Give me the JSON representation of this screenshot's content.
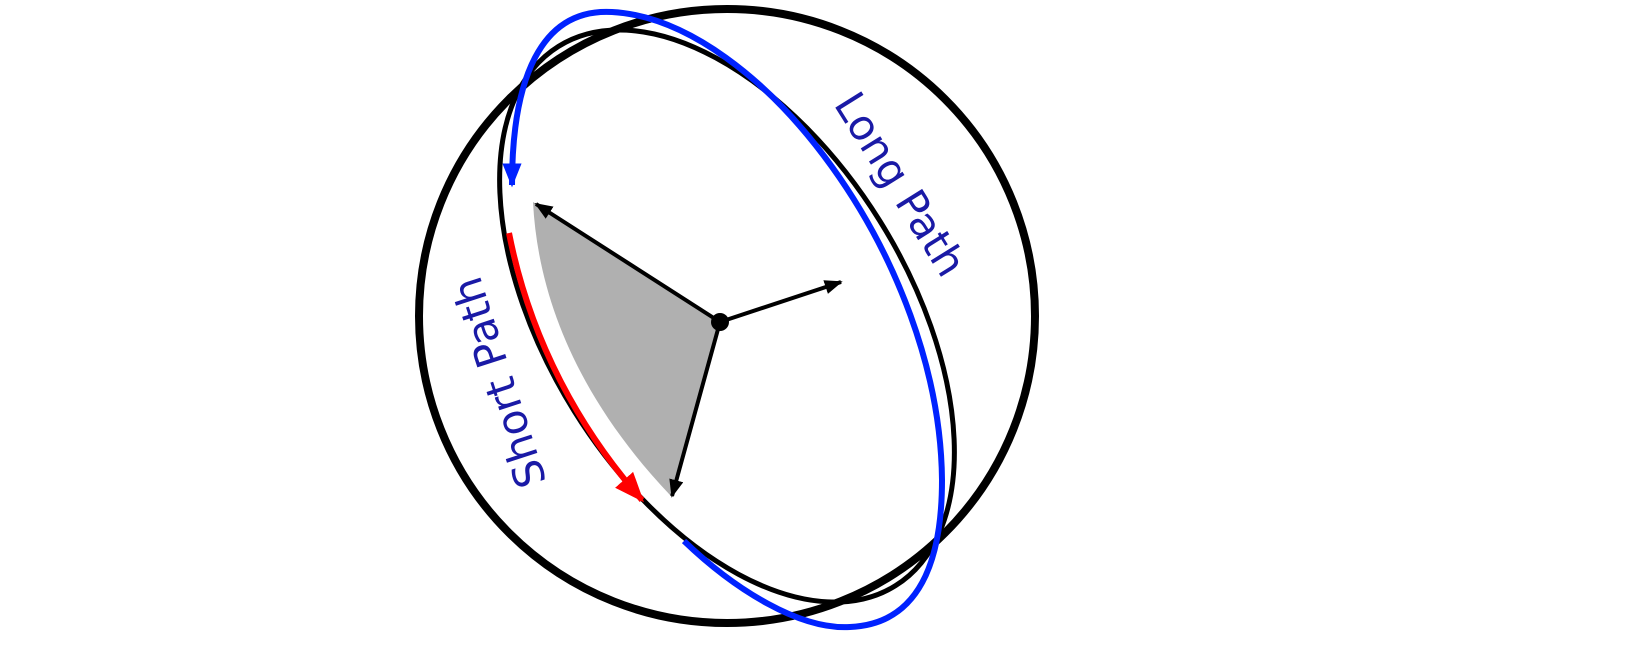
{
  "diagram": {
    "labels": {
      "long_path": "Long Path",
      "short_path": "Short Path"
    },
    "colors": {
      "label_text": "#1a1aa6",
      "long_path": "#0022ff",
      "short_path": "#ff0000",
      "plane_fill": "#b0b0b0",
      "outline": "#000000"
    }
  }
}
